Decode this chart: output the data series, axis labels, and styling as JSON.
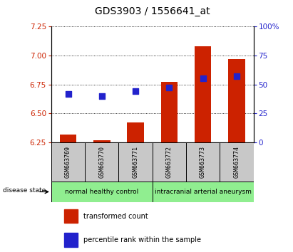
{
  "title": "GDS3903 / 1556641_at",
  "samples": [
    "GSM663769",
    "GSM663770",
    "GSM663771",
    "GSM663772",
    "GSM663773",
    "GSM663774"
  ],
  "group_names": [
    "normal healthy control",
    "intracranial arterial aneurysm"
  ],
  "group_ranges": [
    [
      0,
      3
    ],
    [
      3,
      6
    ]
  ],
  "group_color": "#90ee90",
  "transformed_count": [
    6.32,
    6.27,
    6.42,
    6.77,
    7.08,
    6.97
  ],
  "percentile_rank": [
    42,
    40,
    44,
    47,
    55,
    57
  ],
  "ylim_left": [
    6.25,
    7.25
  ],
  "ylim_right": [
    0,
    100
  ],
  "yticks_left": [
    6.25,
    6.5,
    6.75,
    7.0,
    7.25
  ],
  "yticks_right": [
    0,
    25,
    50,
    75,
    100
  ],
  "bar_color": "#cc2200",
  "dot_color": "#2222cc",
  "bar_width": 0.5,
  "dot_size": 28,
  "sample_box_color": "#c8c8c8",
  "left_label_color": "#cc2200",
  "right_label_color": "#2222cc",
  "legend_bar_label": "transformed count",
  "legend_dot_label": "percentile rank within the sample",
  "disease_state_label": "disease state"
}
